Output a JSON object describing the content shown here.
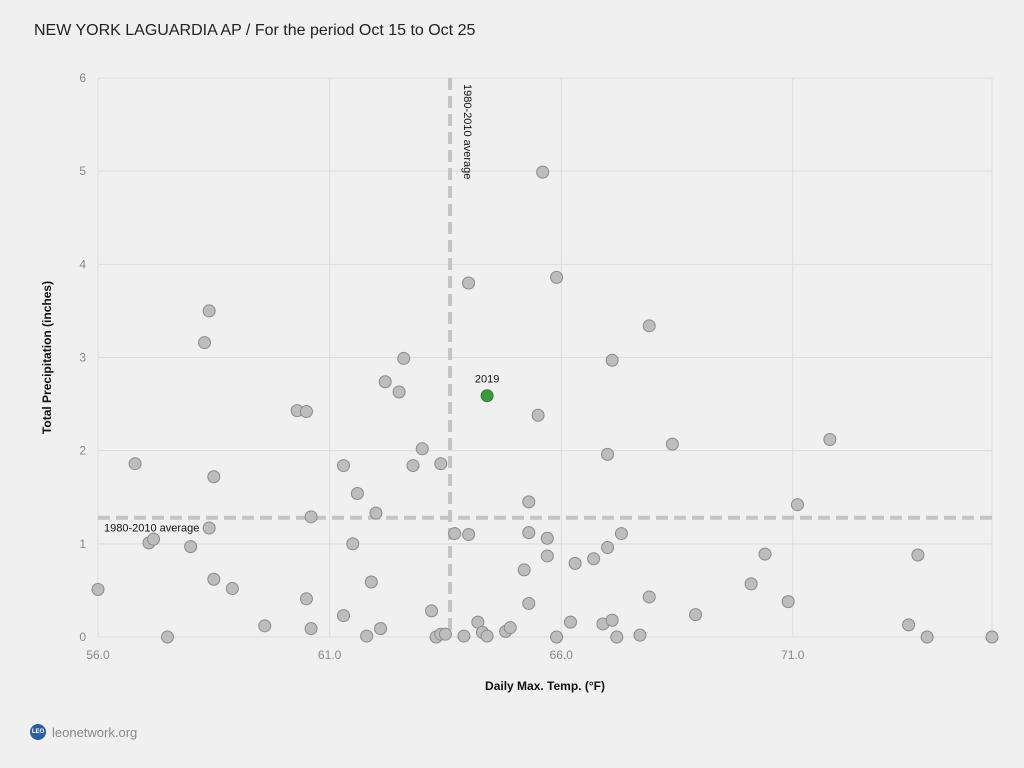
{
  "title": "NEW YORK LAGUARDIA AP / For the period Oct 15 to Oct 25",
  "footer": {
    "logo_text": "LEO",
    "site": "leonetwork.org"
  },
  "colors": {
    "point": "#bdbdbd",
    "point_stroke": "#8a8a8a",
    "highlight": "#3c9a3c",
    "avg_line": "#c4c4c4",
    "grid": "#dcdcdc"
  },
  "chart_data": {
    "type": "scatter",
    "title": "NEW YORK LAGUARDIA AP / For the period Oct 15 to Oct 25",
    "xlabel": "Daily Max. Temp. (°F)",
    "ylabel": "Total Precipitation (inches)",
    "xlim": [
      56.0,
      75.3
    ],
    "ylim": [
      0,
      6
    ],
    "xticks": [
      "56.0",
      "61.0",
      "66.0",
      "71.0"
    ],
    "xtick_values": [
      56,
      61,
      66,
      71
    ],
    "yticks": [
      "0",
      "1",
      "2",
      "3",
      "4",
      "5",
      "6"
    ],
    "ytick_values": [
      0,
      1,
      2,
      3,
      4,
      5,
      6
    ],
    "grid": true,
    "avg_lines": {
      "x": 63.6,
      "y": 1.28,
      "x_label": "1980-2010 average",
      "y_label": "1980-2010 average"
    },
    "highlight": {
      "label": "2019",
      "x": 64.4,
      "y": 2.59
    },
    "points": [
      [
        56.0,
        0.51
      ],
      [
        56.8,
        1.86
      ],
      [
        57.1,
        1.01
      ],
      [
        57.2,
        1.05
      ],
      [
        57.5,
        0.0
      ],
      [
        58.0,
        0.97
      ],
      [
        58.3,
        3.16
      ],
      [
        58.4,
        3.5
      ],
      [
        58.4,
        1.17
      ],
      [
        58.5,
        1.72
      ],
      [
        58.5,
        0.62
      ],
      [
        58.9,
        0.52
      ],
      [
        59.6,
        0.12
      ],
      [
        60.3,
        2.43
      ],
      [
        60.5,
        2.42
      ],
      [
        60.5,
        0.41
      ],
      [
        60.6,
        1.29
      ],
      [
        60.6,
        0.09
      ],
      [
        61.3,
        1.84
      ],
      [
        61.3,
        0.23
      ],
      [
        61.5,
        1.0
      ],
      [
        61.6,
        1.54
      ],
      [
        61.8,
        0.01
      ],
      [
        61.9,
        0.59
      ],
      [
        62.0,
        1.33
      ],
      [
        62.1,
        0.09
      ],
      [
        62.2,
        2.74
      ],
      [
        62.5,
        2.63
      ],
      [
        62.6,
        2.99
      ],
      [
        62.8,
        1.84
      ],
      [
        63.0,
        2.02
      ],
      [
        63.2,
        0.28
      ],
      [
        63.3,
        0.0
      ],
      [
        63.4,
        1.86
      ],
      [
        63.4,
        0.03
      ],
      [
        63.5,
        0.03
      ],
      [
        63.7,
        1.11
      ],
      [
        63.9,
        0.01
      ],
      [
        64.0,
        3.8
      ],
      [
        64.0,
        1.1
      ],
      [
        64.2,
        0.16
      ],
      [
        64.3,
        0.05
      ],
      [
        64.4,
        0.01
      ],
      [
        64.8,
        0.06
      ],
      [
        64.9,
        0.1
      ],
      [
        65.2,
        0.72
      ],
      [
        65.3,
        1.45
      ],
      [
        65.3,
        1.12
      ],
      [
        65.3,
        0.36
      ],
      [
        65.5,
        2.38
      ],
      [
        65.6,
        4.99
      ],
      [
        65.7,
        1.06
      ],
      [
        65.7,
        0.87
      ],
      [
        65.9,
        3.86
      ],
      [
        65.9,
        0.0
      ],
      [
        66.2,
        0.16
      ],
      [
        66.3,
        0.79
      ],
      [
        66.7,
        0.84
      ],
      [
        66.9,
        0.14
      ],
      [
        67.0,
        1.96
      ],
      [
        67.0,
        0.96
      ],
      [
        67.1,
        2.97
      ],
      [
        67.1,
        0.18
      ],
      [
        67.2,
        0.0
      ],
      [
        67.3,
        1.11
      ],
      [
        67.7,
        0.02
      ],
      [
        67.9,
        3.34
      ],
      [
        67.9,
        0.43
      ],
      [
        68.4,
        2.07
      ],
      [
        68.9,
        0.24
      ],
      [
        70.1,
        0.57
      ],
      [
        70.4,
        0.89
      ],
      [
        70.9,
        0.38
      ],
      [
        71.1,
        1.42
      ],
      [
        71.8,
        2.12
      ],
      [
        73.5,
        0.13
      ],
      [
        73.7,
        0.88
      ],
      [
        73.9,
        0.0
      ],
      [
        75.3,
        0.0
      ]
    ]
  }
}
